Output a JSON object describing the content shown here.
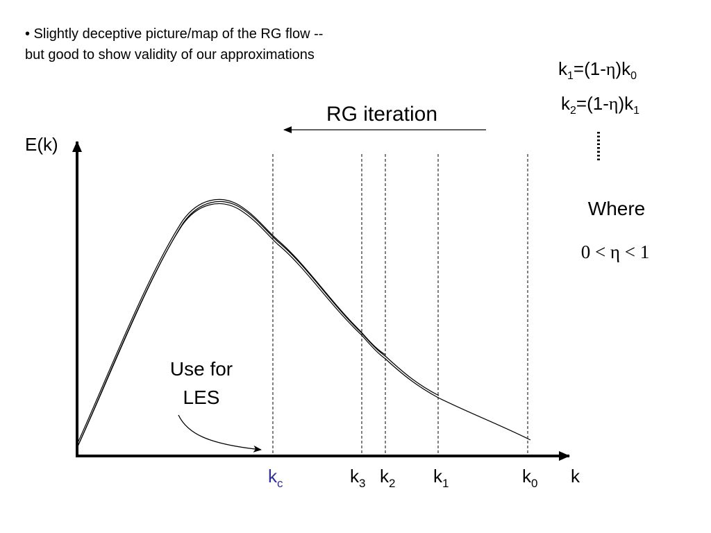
{
  "note": {
    "line1": "• Slightly deceptive picture/map of the RG flow --",
    "line2": "but good to show validity of our approximations"
  },
  "equations": {
    "eq1": {
      "lhs": "k",
      "lhs_sub": "1",
      "mid": "=(1-",
      "eta": "η",
      "rhs": ")k",
      "rhs_sub": "0"
    },
    "eq2": {
      "lhs": "k",
      "lhs_sub": "2",
      "mid": "=(1-",
      "eta": "η",
      "rhs": ")k",
      "rhs_sub": "1"
    }
  },
  "where": {
    "label": "Where",
    "condition": "0 < η < 1"
  },
  "arrow_label": "RG iteration",
  "les_label": {
    "line1": "Use for",
    "line2": "LES"
  },
  "axes": {
    "y_label": "E(k)",
    "x_label": "k"
  },
  "k_labels": [
    {
      "base": "k",
      "sub": "c",
      "color": "#2f2f9a"
    },
    {
      "base": "k",
      "sub": "3",
      "color": "#000000"
    },
    {
      "base": "k",
      "sub": "2",
      "color": "#000000"
    },
    {
      "base": "k",
      "sub": "1",
      "color": "#000000"
    },
    {
      "base": "k",
      "sub": "0",
      "color": "#000000"
    }
  ]
}
